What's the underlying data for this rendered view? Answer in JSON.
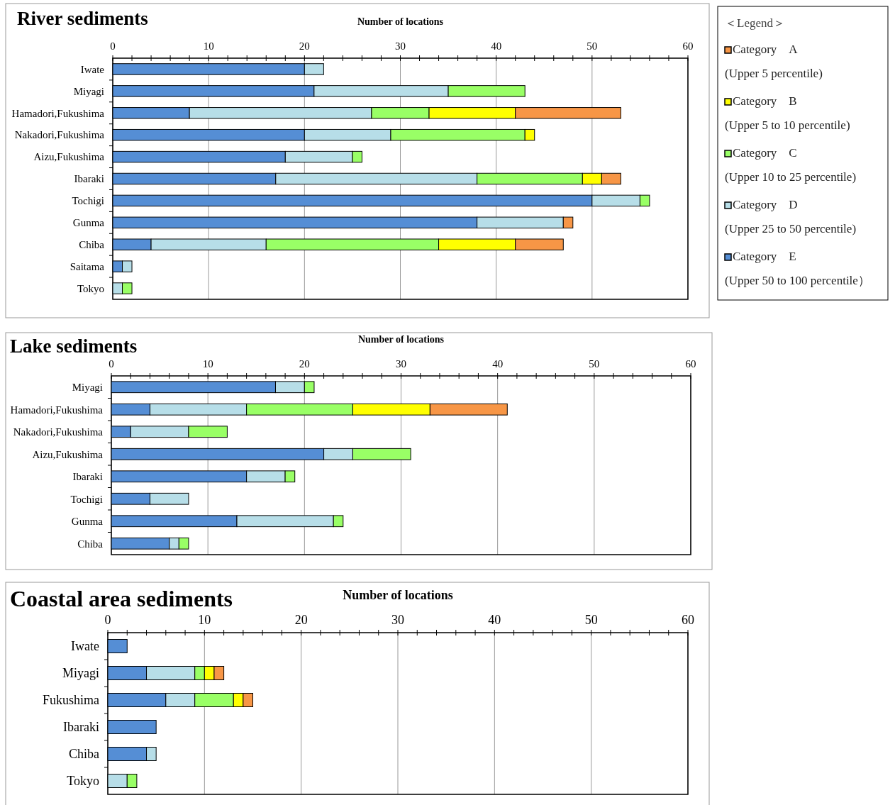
{
  "chart_data": [
    {
      "type": "bar",
      "orientation": "horizontal",
      "stacked": true,
      "title": "River sediments",
      "xlabel": "Number of locations",
      "legend": "right",
      "legend_title": "＜Legend＞",
      "grid": "x",
      "categories": [
        "Iwate",
        "Miyagi",
        "Hamadori,Fukushima",
        "Nakadori,Fukushima",
        "Aizu,Fukushima",
        "Ibaraki",
        "Tochigi",
        "Gunma",
        "Chiba",
        "Saitama",
        "Tokyo"
      ],
      "xlim": [
        0,
        60
      ],
      "xticks": [
        0,
        {
          "value": 2,
          "label": null
        },
        {
          "value": 4,
          "label": null
        },
        {
          "value": 6,
          "label": null
        },
        {
          "value": 8,
          "label": null
        },
        10,
        {
          "value": 12,
          "label": null
        },
        {
          "value": 14,
          "label": null
        },
        {
          "value": 16,
          "label": null
        },
        {
          "value": 18,
          "label": null
        },
        20,
        {
          "value": 22,
          "label": null
        },
        {
          "value": 24,
          "label": null
        },
        {
          "value": 26,
          "label": null
        },
        {
          "value": 28,
          "label": null
        },
        30,
        {
          "value": 32,
          "label": null
        },
        {
          "value": 34,
          "label": null
        },
        {
          "value": 36,
          "label": null
        },
        {
          "value": 38,
          "label": null
        },
        40,
        {
          "value": 42,
          "label": null
        },
        {
          "value": 44,
          "label": null
        },
        {
          "value": 46,
          "label": null
        },
        {
          "value": 48,
          "label": null
        },
        50,
        {
          "value": 52,
          "label": null
        },
        {
          "value": 54,
          "label": null
        },
        {
          "value": 56,
          "label": null
        },
        {
          "value": 58,
          "label": null
        },
        60
      ],
      "series": [
        {
          "name": "Category　E (Upper 50 to 100 percentile）",
          "color": "#558ed5",
          "values": [
            20,
            21,
            8,
            20,
            18,
            17,
            50,
            38,
            4,
            1,
            0
          ]
        },
        {
          "name": "Category　D (Upper 25 to 50 percentile)",
          "color": "#b7dee8",
          "values": [
            2,
            14,
            19,
            9,
            7,
            21,
            5,
            9,
            12,
            1,
            1
          ]
        },
        {
          "name": "Category　C (Upper 10 to 25 percentile)",
          "color": "#99ff66",
          "values": [
            0,
            8,
            6,
            14,
            1,
            11,
            1,
            0,
            18,
            0,
            1
          ]
        },
        {
          "name": "Category　B (Upper 5 to 10 percentile)",
          "color": "#ffff00",
          "values": [
            0,
            0,
            9,
            1,
            0,
            2,
            0,
            0,
            8,
            0,
            0
          ]
        },
        {
          "name": "Category　A (Upper 5 percentile)",
          "color": "#f79646",
          "values": [
            0,
            0,
            11,
            0,
            0,
            2,
            0,
            1,
            5,
            0,
            0
          ]
        }
      ]
    },
    {
      "type": "bar",
      "orientation": "horizontal",
      "stacked": true,
      "title": "Lake sediments",
      "xlabel": "Number of locations",
      "grid": "x",
      "categories": [
        "Miyagi",
        "Hamadori,Fukushima",
        "Nakadori,Fukushima",
        "Aizu,Fukushima",
        "Ibaraki",
        "Tochigi",
        "Gunma",
        "Chiba"
      ],
      "xlim": [
        0,
        60
      ],
      "xticks": [
        0,
        {
          "value": 2,
          "label": null
        },
        {
          "value": 4,
          "label": null
        },
        {
          "value": 6,
          "label": null
        },
        {
          "value": 8,
          "label": null
        },
        10,
        {
          "value": 12,
          "label": null
        },
        {
          "value": 14,
          "label": null
        },
        {
          "value": 16,
          "label": null
        },
        {
          "value": 18,
          "label": null
        },
        20,
        {
          "value": 22,
          "label": null
        },
        {
          "value": 24,
          "label": null
        },
        {
          "value": 26,
          "label": null
        },
        {
          "value": 28,
          "label": null
        },
        30,
        {
          "value": 32,
          "label": null
        },
        {
          "value": 34,
          "label": null
        },
        {
          "value": 36,
          "label": null
        },
        {
          "value": 38,
          "label": null
        },
        40,
        {
          "value": 42,
          "label": null
        },
        {
          "value": 44,
          "label": null
        },
        {
          "value": 46,
          "label": null
        },
        {
          "value": 48,
          "label": null
        },
        50,
        {
          "value": 52,
          "label": null
        },
        {
          "value": 54,
          "label": null
        },
        {
          "value": 56,
          "label": null
        },
        {
          "value": 58,
          "label": null
        },
        60
      ],
      "series": [
        {
          "color": "#558ed5",
          "values": [
            17,
            4,
            2,
            22,
            14,
            4,
            13,
            6
          ]
        },
        {
          "color": "#b7dee8",
          "values": [
            3,
            10,
            6,
            3,
            4,
            4,
            10,
            1
          ]
        },
        {
          "color": "#99ff66",
          "values": [
            1,
            11,
            4,
            6,
            1,
            0,
            1,
            1
          ]
        },
        {
          "color": "#ffff00",
          "values": [
            0,
            8,
            0,
            0,
            0,
            0,
            0,
            0
          ]
        },
        {
          "color": "#f79646",
          "values": [
            0,
            8,
            0,
            0,
            0,
            0,
            0,
            0
          ]
        }
      ]
    },
    {
      "type": "bar",
      "orientation": "horizontal",
      "stacked": true,
      "title": "Coastal area sediments",
      "xlabel": "Number of locations",
      "grid": "x",
      "categories": [
        "Iwate",
        "Miyagi",
        "Fukushima",
        "Ibaraki",
        "Chiba",
        "Tokyo"
      ],
      "xlim": [
        0,
        60
      ],
      "xticks": [
        0,
        {
          "value": 2,
          "label": null
        },
        {
          "value": 4,
          "label": null
        },
        {
          "value": 6,
          "label": null
        },
        {
          "value": 8,
          "label": null
        },
        10,
        {
          "value": 12,
          "label": null
        },
        {
          "value": 14,
          "label": null
        },
        {
          "value": 16,
          "label": null
        },
        {
          "value": 18,
          "label": null
        },
        20,
        {
          "value": 22,
          "label": null
        },
        {
          "value": 24,
          "label": null
        },
        {
          "value": 26,
          "label": null
        },
        {
          "value": 28,
          "label": null
        },
        30,
        {
          "value": 32,
          "label": null
        },
        {
          "value": 34,
          "label": null
        },
        {
          "value": 36,
          "label": null
        },
        {
          "value": 38,
          "label": null
        },
        40,
        {
          "value": 42,
          "label": null
        },
        {
          "value": 44,
          "label": null
        },
        {
          "value": 46,
          "label": null
        },
        {
          "value": 48,
          "label": null
        },
        50,
        {
          "value": 52,
          "label": null
        },
        {
          "value": 54,
          "label": null
        },
        {
          "value": 56,
          "label": null
        },
        {
          "value": 58,
          "label": null
        },
        60
      ],
      "series": [
        {
          "color": "#558ed5",
          "values": [
            2,
            4,
            6,
            5,
            4,
            0
          ]
        },
        {
          "color": "#b7dee8",
          "values": [
            0,
            5,
            3,
            0,
            1,
            2
          ]
        },
        {
          "color": "#99ff66",
          "values": [
            0,
            1,
            4,
            0,
            0,
            1
          ]
        },
        {
          "color": "#ffff00",
          "values": [
            0,
            1,
            1,
            0,
            0,
            0
          ]
        },
        {
          "color": "#f79646",
          "values": [
            0,
            1,
            1,
            0,
            0,
            0
          ]
        }
      ]
    }
  ]
}
